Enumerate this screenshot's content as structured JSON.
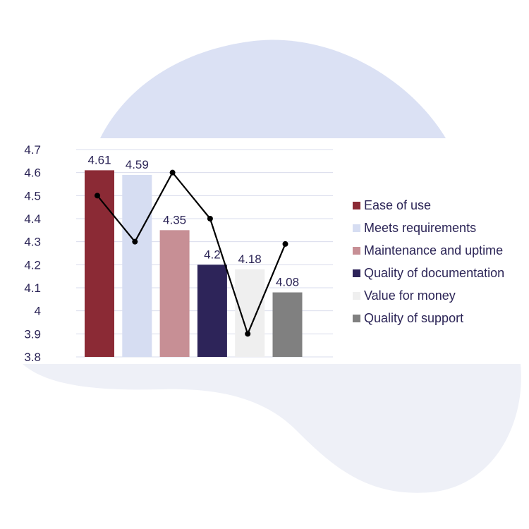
{
  "chart_data": {
    "type": "bar",
    "categories": [
      "Ease of use",
      "Meets requirements",
      "Maintenance and uptime",
      "Quality of documentation",
      "Value for money",
      "Quality of support"
    ],
    "values": [
      4.61,
      4.59,
      4.35,
      4.2,
      4.18,
      4.08
    ],
    "data_labels": [
      "4.61",
      "4.59",
      "4.35",
      "4.2",
      "4.18",
      "4.08"
    ],
    "bar_colors": [
      "#8b2a35",
      "#d6ddf2",
      "#c78f95",
      "#2d2459",
      "#efefef",
      "#808080"
    ],
    "line_series": {
      "values": [
        4.5,
        4.3,
        4.6,
        4.4,
        3.9,
        4.29
      ],
      "color": "#000000"
    },
    "ylim": [
      3.8,
      4.7
    ],
    "yticks": [
      "3.8",
      "3.9",
      "4",
      "4.1",
      "4.2",
      "4.3",
      "4.4",
      "4.5",
      "4.6",
      "4.7"
    ],
    "grid": true,
    "legend_position": "right",
    "title": "",
    "xlabel": "",
    "ylabel": "",
    "background_blob_color": "#dbe1f4",
    "background_blob2_color": "#eef0f7",
    "text_color": "#2b2456",
    "grid_color": "#d9dcec"
  }
}
